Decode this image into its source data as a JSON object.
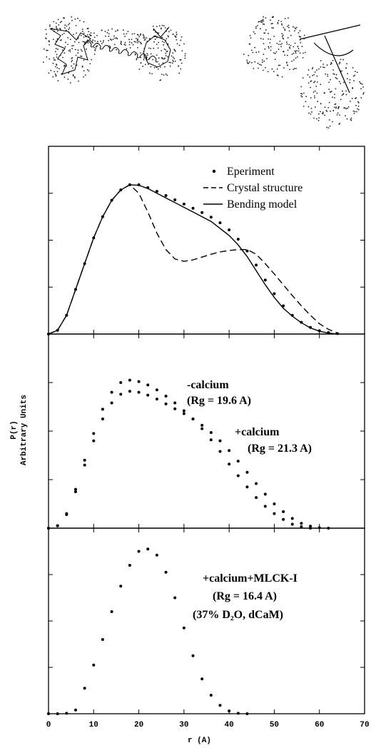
{
  "chart_data": [
    {
      "type": "line",
      "xlim": [
        0,
        70
      ],
      "xticks": [
        0,
        10,
        20,
        30,
        40,
        50,
        60,
        70
      ],
      "ylim": [
        0,
        4
      ],
      "yticks": [
        1,
        2,
        3
      ],
      "x": [
        0,
        2,
        4,
        6,
        8,
        10,
        12,
        14,
        16,
        18,
        20,
        22,
        24,
        26,
        28,
        30,
        32,
        34,
        36,
        38,
        40,
        42,
        44,
        46,
        48,
        50,
        52,
        54,
        56,
        58,
        60,
        62,
        64
      ],
      "series": [
        {
          "name": "Eperiment",
          "color": "#000000",
          "style": "dots",
          "values": [
            0,
            0.08,
            0.4,
            0.95,
            1.5,
            2.05,
            2.5,
            2.85,
            3.07,
            3.18,
            3.18,
            3.12,
            3.04,
            2.95,
            2.86,
            2.77,
            2.68,
            2.59,
            2.49,
            2.37,
            2.22,
            2.02,
            1.77,
            1.47,
            1.15,
            0.86,
            0.6,
            0.4,
            0.25,
            0.14,
            0.07,
            0.03,
            0.01
          ]
        },
        {
          "name": "Crystal structure",
          "color": "#000000",
          "style": "dashed",
          "values": [
            0,
            0.08,
            0.4,
            0.95,
            1.5,
            2.05,
            2.5,
            2.85,
            3.07,
            3.18,
            3.0,
            2.6,
            2.15,
            1.8,
            1.6,
            1.55,
            1.58,
            1.64,
            1.7,
            1.75,
            1.78,
            1.8,
            1.8,
            1.7,
            1.5,
            1.28,
            1.05,
            0.82,
            0.6,
            0.4,
            0.22,
            0.1,
            0.02
          ]
        },
        {
          "name": "Bending model",
          "color": "#000000",
          "style": "solid",
          "values": [
            0,
            0.08,
            0.4,
            0.95,
            1.5,
            2.05,
            2.5,
            2.85,
            3.07,
            3.18,
            3.17,
            3.1,
            3.0,
            2.9,
            2.8,
            2.7,
            2.6,
            2.5,
            2.4,
            2.25,
            2.1,
            1.9,
            1.65,
            1.35,
            1.05,
            0.78,
            0.55,
            0.38,
            0.24,
            0.13,
            0.06,
            0.02,
            0
          ]
        }
      ]
    },
    {
      "type": "line",
      "xlim": [
        0,
        70
      ],
      "xticks": [
        0,
        10,
        20,
        30,
        40,
        50,
        60,
        70
      ],
      "ylim": [
        0,
        4
      ],
      "yticks": [
        1,
        2,
        3
      ],
      "ylabel": "P(r)",
      "ylabel_2": "Arbitrary Units",
      "x": [
        0,
        2,
        4,
        6,
        8,
        10,
        12,
        14,
        16,
        18,
        20,
        22,
        24,
        26,
        28,
        30,
        32,
        34,
        36,
        38,
        40,
        42,
        44,
        46,
        48,
        50,
        52,
        54,
        56,
        58,
        60,
        62
      ],
      "series": [
        {
          "name": "-calcium",
          "color": "#000000",
          "style": "dots",
          "values": [
            0,
            0.05,
            0.3,
            0.8,
            1.4,
            1.95,
            2.45,
            2.8,
            3.0,
            3.05,
            3.02,
            2.95,
            2.85,
            2.72,
            2.58,
            2.42,
            2.25,
            2.05,
            1.82,
            1.58,
            1.32,
            1.08,
            0.85,
            0.63,
            0.45,
            0.3,
            0.18,
            0.08,
            0.03,
            0,
            null,
            null
          ]
        },
        {
          "name": "+calcium",
          "color": "#000000",
          "style": "dots",
          "values": [
            0,
            0.05,
            0.28,
            0.75,
            1.3,
            1.8,
            2.25,
            2.58,
            2.76,
            2.82,
            2.8,
            2.74,
            2.66,
            2.56,
            2.46,
            2.36,
            2.25,
            2.12,
            1.97,
            1.8,
            1.6,
            1.38,
            1.15,
            0.92,
            0.7,
            0.5,
            0.34,
            0.2,
            0.1,
            0.04,
            0.01,
            0
          ]
        }
      ],
      "annotations": [
        "(Rg = 19.6 A)",
        "(Rg = 21.3 A)"
      ]
    },
    {
      "type": "line",
      "xlim": [
        0,
        70
      ],
      "xticks": [
        0,
        10,
        20,
        30,
        40,
        50,
        60,
        70
      ],
      "ylim": [
        0,
        4
      ],
      "yticks": [
        1,
        2,
        3
      ],
      "xlabel": "r (A)",
      "x": [
        0,
        2,
        4,
        6,
        8,
        10,
        12,
        14,
        16,
        18,
        20,
        22,
        24,
        26,
        28,
        30,
        32,
        34,
        36,
        38,
        40,
        42,
        44
      ],
      "series": [
        {
          "name": "+calcium+MLCK-I",
          "color": "#000000",
          "style": "dots",
          "values": [
            0,
            0,
            0.01,
            0.08,
            0.55,
            1.05,
            1.6,
            2.2,
            2.75,
            3.2,
            3.5,
            3.55,
            3.42,
            3.05,
            2.5,
            1.85,
            1.25,
            0.75,
            0.4,
            0.18,
            0.06,
            0.01,
            0
          ]
        }
      ],
      "annotations": [
        "(Rg = 16.4 A)",
        "(37% D₂O, dCaM)"
      ]
    }
  ]
}
